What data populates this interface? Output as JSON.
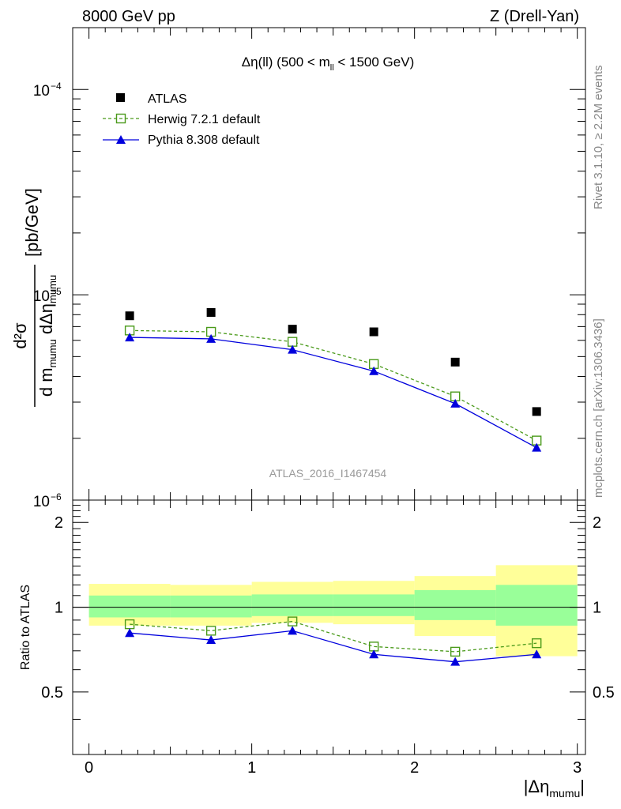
{
  "header": {
    "left": "8000 GeV pp",
    "right": "Z (Drell-Yan)"
  },
  "main_title": {
    "prefix": "Δη(ll) (500 < m",
    "sub": "ll",
    "suffix": " < 1500 GeV)"
  },
  "watermark": "ATLAS_2016_I1467454",
  "side_text": {
    "rivet": "Rivet 3.1.10, ≥ 2.2M events",
    "mcplots": "mcplots.cern.ch [arXiv:1306.3436]"
  },
  "axes": {
    "ylabel_unit": "[pb/GeV]",
    "ylabel_num": "d²σ",
    "ylabel_den_1": "d m",
    "ylabel_den_sub1": "mumu",
    "ylabel_den_2": " dΔη",
    "ylabel_den_sub2": "mumu",
    "ratio_ylabel": "Ratio to ATLAS",
    "xlabel_pre": "|Δη",
    "xlabel_sub": "mumu",
    "xlabel_post": "|"
  },
  "legend": {
    "atlas": "ATLAS",
    "herwig": "Herwig 7.2.1 default",
    "pythia": "Pythia 8.308 default"
  },
  "colors": {
    "data": "#000000",
    "herwig": "#4a9a1a",
    "pythia": "#0000dd",
    "band_inner": "#99ff99",
    "band_outer": "#ffff99"
  },
  "chart_data": {
    "type": "scatter",
    "x_edges": [
      0,
      0.5,
      1.0,
      1.5,
      2.0,
      2.5,
      3.0
    ],
    "x": [
      0.25,
      0.75,
      1.25,
      1.75,
      2.25,
      2.75
    ],
    "xlim": [
      -0.1,
      3.05
    ],
    "ylim": [
      1e-06,
      0.0002
    ],
    "yscale": "log",
    "series": [
      {
        "name": "ATLAS",
        "values": [
          7.9e-06,
          8.2e-06,
          6.8e-06,
          6.6e-06,
          4.7e-06,
          2.7e-06
        ]
      },
      {
        "name": "Herwig 7.2.1 default",
        "values": [
          6.7e-06,
          6.6e-06,
          5.9e-06,
          4.6e-06,
          3.2e-06,
          1.95e-06
        ]
      },
      {
        "name": "Pythia 8.308 default",
        "values": [
          6.2e-06,
          6.1e-06,
          5.4e-06,
          4.25e-06,
          2.95e-06,
          1.8e-06
        ]
      }
    ],
    "y_ticks": [
      {
        "value": 1e-06,
        "base": "10",
        "exp": "−6"
      },
      {
        "value": 1e-05,
        "base": "10",
        "exp": "−5"
      },
      {
        "value": 0.0001,
        "base": "10",
        "exp": "−4"
      }
    ],
    "x_ticks": [
      {
        "value": 0,
        "label": "0"
      },
      {
        "value": 1,
        "label": "1"
      },
      {
        "value": 2,
        "label": "2"
      },
      {
        "value": 3,
        "label": "3"
      }
    ],
    "ratio": {
      "ylim": [
        0.3,
        2.4
      ],
      "yscale": "log",
      "y_ticks": [
        {
          "value": 0.5,
          "label": "0.5"
        },
        {
          "value": 1,
          "label": "1"
        },
        {
          "value": 2,
          "label": "2"
        }
      ],
      "band_inner": [
        [
          0.92,
          1.1
        ],
        [
          0.92,
          1.1
        ],
        [
          0.93,
          1.11
        ],
        [
          0.93,
          1.11
        ],
        [
          0.9,
          1.15
        ],
        [
          0.86,
          1.2
        ]
      ],
      "band_outer": [
        [
          0.86,
          1.21
        ],
        [
          0.86,
          1.2
        ],
        [
          0.88,
          1.23
        ],
        [
          0.87,
          1.24
        ],
        [
          0.79,
          1.29
        ],
        [
          0.67,
          1.41
        ]
      ],
      "series": [
        {
          "name": "Herwig 7.2.1 default",
          "values": [
            0.87,
            0.825,
            0.89,
            0.725,
            0.695,
            0.745
          ]
        },
        {
          "name": "Pythia 8.308 default",
          "values": [
            0.81,
            0.765,
            0.825,
            0.68,
            0.64,
            0.68
          ]
        }
      ]
    }
  }
}
